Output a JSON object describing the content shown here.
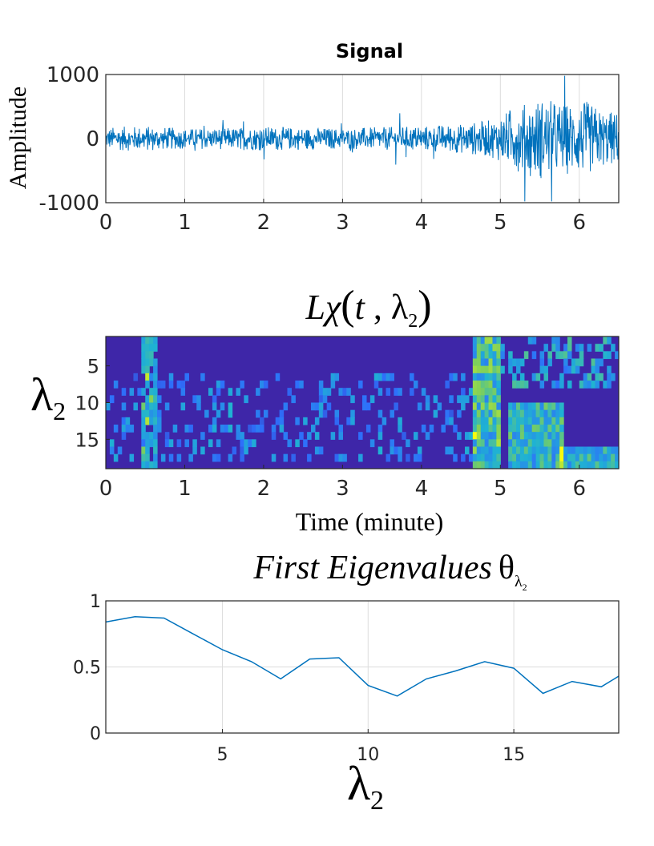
{
  "chart_data": [
    {
      "type": "line",
      "title": "Signal",
      "xlabel": "",
      "ylabel": "Amplitude",
      "xlim": [
        0,
        6.5
      ],
      "ylim": [
        -1000,
        1000
      ],
      "x_ticks": [
        "0",
        "1",
        "2",
        "3",
        "4",
        "5",
        "6"
      ],
      "y_ticks": [
        "1000",
        "0",
        "-1000"
      ],
      "grid": true,
      "series_color": "#0072BD",
      "envelope": {
        "x": [
          0,
          0.5,
          1,
          1.5,
          2,
          2.5,
          3,
          3.5,
          4,
          4.5,
          4.9,
          5.2,
          5.5,
          5.8,
          6.1,
          6.3,
          6.5
        ],
        "amp": [
          180,
          200,
          160,
          170,
          190,
          175,
          165,
          180,
          200,
          230,
          300,
          500,
          650,
          560,
          580,
          450,
          420
        ]
      }
    },
    {
      "type": "heatmap",
      "title": "Lχ(t, λ₂)",
      "title_main": "Lχ",
      "title_args": [
        "t",
        "λ"
      ],
      "title_sub": "2",
      "xlabel": "Time (minute)",
      "ylabel": "λ",
      "ylabel_sub": "2",
      "xlim": [
        0,
        6.5
      ],
      "ylim": [
        1,
        19
      ],
      "x_ticks": [
        "0",
        "1",
        "2",
        "3",
        "4",
        "5",
        "6"
      ],
      "y_ticks": [
        "5",
        "10",
        "15"
      ],
      "colormap": [
        "#3e26a8",
        "#2e6ffb",
        "#1fb2d3",
        "#7ccf5d",
        "#f9fb0e"
      ]
    },
    {
      "type": "line",
      "title": "First Eigenvalues θλ₂",
      "title_main": "First Eigenvalues",
      "title_theta": "θ",
      "title_sub_lambda": "λ",
      "title_sub_2": "2",
      "xlabel": "λ",
      "xlabel_sub": "2",
      "ylabel": "",
      "xlim": [
        1,
        18.6
      ],
      "ylim": [
        0,
        1
      ],
      "x_ticks": [
        "5",
        "10",
        "15"
      ],
      "y_ticks": [
        "1",
        "0.5",
        "0"
      ],
      "grid": true,
      "series_color": "#0072BD",
      "x": [
        1,
        2,
        3,
        4,
        5,
        6,
        7,
        8,
        9,
        10,
        11,
        12,
        13,
        14,
        15,
        16,
        17,
        18,
        18.6
      ],
      "y": [
        0.84,
        0.88,
        0.87,
        0.75,
        0.63,
        0.54,
        0.41,
        0.56,
        0.57,
        0.36,
        0.28,
        0.41,
        0.47,
        0.54,
        0.49,
        0.3,
        0.39,
        0.35,
        0.43
      ]
    }
  ]
}
